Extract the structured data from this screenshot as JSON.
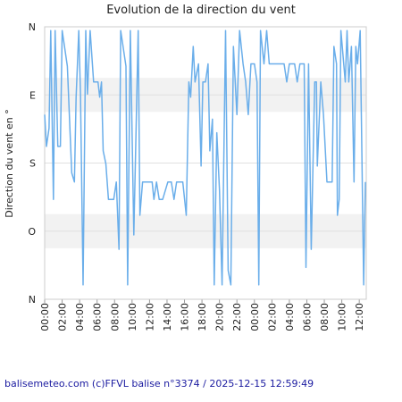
{
  "chart_data": {
    "type": "line",
    "title": "Evolution de la direction du vent",
    "ylabel": "Direction du vent en °",
    "footer": "balisemeteo.com (c)FFVL balise n°3374 / 2025-12-15 12:59:49",
    "xlim": [
      0,
      36.8
    ],
    "xticks": [
      {
        "value": 0,
        "label": "00:00"
      },
      {
        "value": 2,
        "label": "02:00"
      },
      {
        "value": 4,
        "label": "04:00"
      },
      {
        "value": 6,
        "label": "06:00"
      },
      {
        "value": 8,
        "label": "08:00"
      },
      {
        "value": 10,
        "label": "10:00"
      },
      {
        "value": 12,
        "label": "12:00"
      },
      {
        "value": 14,
        "label": "14:00"
      },
      {
        "value": 16,
        "label": "16:00"
      },
      {
        "value": 18,
        "label": "18:00"
      },
      {
        "value": 20,
        "label": "20:00"
      },
      {
        "value": 22,
        "label": "22:00"
      },
      {
        "value": 24,
        "label": "00:00"
      },
      {
        "value": 26,
        "label": "02:00"
      },
      {
        "value": 28,
        "label": "04:00"
      },
      {
        "value": 30,
        "label": "06:00"
      },
      {
        "value": 32,
        "label": "08:00"
      },
      {
        "value": 34,
        "label": "10:00"
      },
      {
        "value": 36,
        "label": "12:00"
      }
    ],
    "ylim": [
      0,
      360
    ],
    "yticks": [
      {
        "value": 0,
        "label": "N"
      },
      {
        "value": 90,
        "label": "E"
      },
      {
        "value": 180,
        "label": "S"
      },
      {
        "value": 270,
        "label": "O"
      },
      {
        "value": 360,
        "label": "N"
      }
    ],
    "y_inverted": true,
    "grid": true,
    "series": [
      {
        "color": "#6aaeea",
        "x": [
          0,
          0.2,
          0.5,
          0.7,
          1.0,
          1.2,
          1.5,
          1.8,
          2.0,
          2.6,
          3.1,
          3.4,
          3.6,
          3.9,
          4.1,
          4.4,
          4.7,
          4.9,
          5.2,
          5.6,
          6.1,
          6.3,
          6.5,
          6.7,
          7.0,
          7.3,
          7.9,
          8.2,
          8.5,
          8.7,
          9.0,
          9.3,
          9.5,
          9.8,
          10.2,
          10.7,
          10.9,
          11.2,
          11.8,
          12.3,
          12.5,
          12.8,
          13.1,
          13.5,
          14.1,
          14.5,
          14.8,
          15.1,
          15.8,
          16.2,
          16.5,
          16.7,
          17.0,
          17.2,
          17.6,
          17.9,
          18.1,
          18.4,
          18.7,
          18.9,
          19.2,
          19.4,
          19.7,
          20.0,
          20.3,
          20.7,
          21.0,
          21.3,
          21.6,
          21.8,
          22.0,
          22.3,
          22.7,
          23.0,
          23.3,
          23.6,
          24.0,
          24.3,
          24.5,
          24.7,
          25.1,
          25.4,
          25.7,
          26.1,
          27.4,
          27.7,
          28.0,
          28.6,
          28.9,
          29.2,
          29.7,
          29.9,
          30.2,
          30.5,
          30.9,
          31.1,
          31.2,
          31.6,
          31.9,
          32.3,
          32.9,
          33.1,
          33.4,
          33.5,
          33.7,
          33.9,
          34.4,
          34.6,
          34.8,
          35.1,
          35.4,
          35.6,
          35.8,
          36.1,
          36.5,
          36.7
        ],
        "values": [
          116,
          158,
          134,
          5,
          228,
          5,
          158,
          158,
          5,
          52,
          193,
          205,
          93,
          5,
          89,
          341,
          5,
          89,
          5,
          73,
          73,
          93,
          73,
          164,
          181,
          228,
          228,
          205,
          294,
          5,
          28,
          52,
          341,
          5,
          275,
          5,
          249,
          205,
          205,
          205,
          228,
          205,
          228,
          228,
          205,
          205,
          228,
          205,
          205,
          249,
          73,
          93,
          26,
          73,
          49,
          184,
          73,
          73,
          49,
          164,
          122,
          341,
          140,
          216,
          341,
          5,
          322,
          341,
          26,
          73,
          116,
          5,
          49,
          73,
          116,
          49,
          49,
          73,
          341,
          5,
          49,
          5,
          49,
          49,
          49,
          73,
          49,
          49,
          73,
          49,
          49,
          318,
          49,
          294,
          73,
          73,
          184,
          73,
          116,
          205,
          205,
          26,
          49,
          249,
          228,
          5,
          73,
          5,
          73,
          26,
          205,
          26,
          49,
          5,
          341,
          205
        ]
      }
    ]
  }
}
